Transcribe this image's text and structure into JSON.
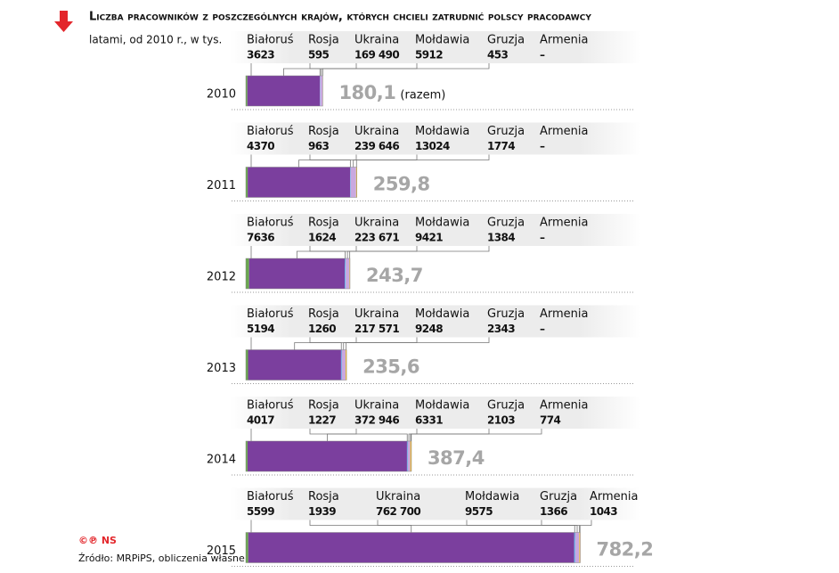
{
  "header": {
    "title": "Liczba pracowników z poszczególnych krajów, których chcieli zatrudnić polscy pracodawcy",
    "subtitle": "latami, od 2010 r., w tys."
  },
  "countries": [
    "Białoruś",
    "Rosja",
    "Ukraina",
    "Mołdawia",
    "Gruzja",
    "Armenia"
  ],
  "years": [
    {
      "year": "2010",
      "values": [
        3623,
        595,
        {
          "value": 169490,
          "label": "169 490"
        },
        5912,
        453,
        "–"
      ],
      "total": {
        "value": 180.1,
        "label": "180,1"
      },
      "note": "(razem)"
    },
    {
      "year": "2011",
      "values": [
        4370,
        963,
        {
          "value": 239646,
          "label": "239 646"
        },
        13024,
        1774,
        "–"
      ],
      "total": {
        "value": 259.8,
        "label": "259,8"
      }
    },
    {
      "year": "2012",
      "values": [
        7636,
        1624,
        {
          "value": 223671,
          "label": "223 671"
        },
        9421,
        1384,
        "–"
      ],
      "total": {
        "value": 243.7,
        "label": "243,7"
      }
    },
    {
      "year": "2013",
      "values": [
        5194,
        1260,
        {
          "value": 217571,
          "label": "217 571"
        },
        9248,
        2343,
        "–"
      ],
      "total": {
        "value": 235.6,
        "label": "235,6"
      }
    },
    {
      "year": "2014",
      "values": [
        4017,
        1227,
        {
          "value": 372946,
          "label": "372 946"
        },
        6331,
        2103,
        774
      ],
      "total": {
        "value": 387.4,
        "label": "387,4"
      }
    },
    {
      "year": "2015",
      "values": [
        5599,
        1939,
        {
          "value": 762700,
          "label": "762 700"
        },
        9575,
        1366,
        1043
      ],
      "total": {
        "value": 782.2,
        "label": "782,2"
      }
    }
  ],
  "footer": {
    "copyright": "©℗ NS",
    "source": "Źródło: MRPiPS, obliczenia własne"
  }
}
